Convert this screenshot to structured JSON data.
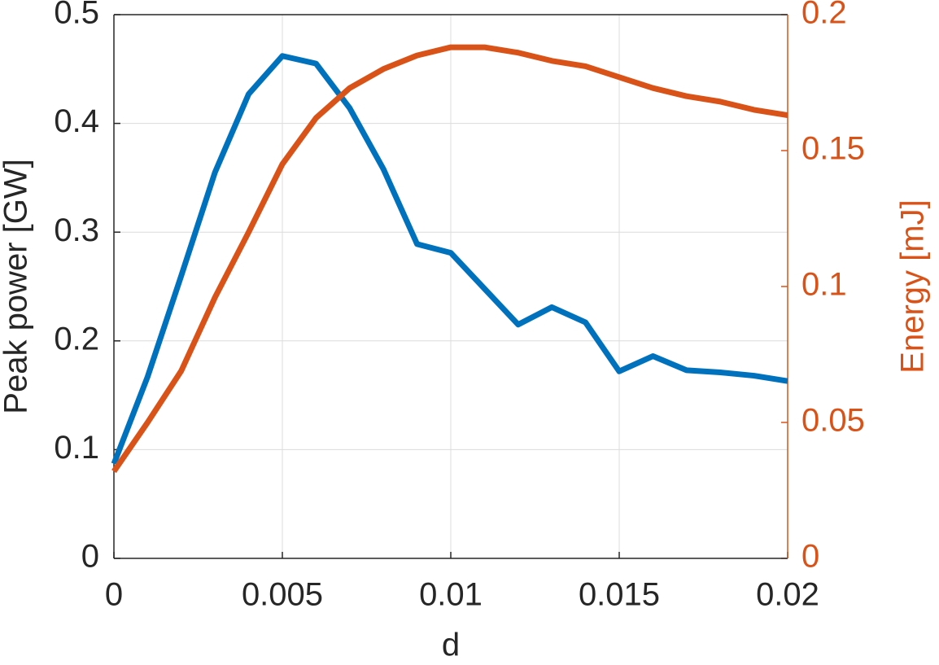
{
  "chart_data": {
    "type": "line",
    "xlabel": "d",
    "ylabel": "Peak power [GW]",
    "y2label": "Energy [mJ]",
    "x": [
      0,
      0.001,
      0.002,
      0.003,
      0.004,
      0.005,
      0.006,
      0.007,
      0.008,
      0.009,
      0.01,
      0.011,
      0.012,
      0.013,
      0.014,
      0.015,
      0.016,
      0.017,
      0.018,
      0.019,
      0.02
    ],
    "series": [
      {
        "name": "Peak power",
        "color": "#0072BD",
        "axis": "y",
        "values": [
          0.087,
          0.167,
          0.26,
          0.355,
          0.427,
          0.462,
          0.455,
          0.414,
          0.358,
          0.289,
          0.281,
          0.248,
          0.215,
          0.231,
          0.217,
          0.172,
          0.186,
          0.173,
          0.171,
          0.168,
          0.163
        ]
      },
      {
        "name": "Energy",
        "color": "#D95319",
        "axis": "y2",
        "values": [
          0.032,
          0.05,
          0.069,
          0.096,
          0.12,
          0.145,
          0.162,
          0.173,
          0.18,
          0.185,
          0.188,
          0.188,
          0.186,
          0.183,
          0.181,
          0.177,
          0.173,
          0.17,
          0.168,
          0.165,
          0.163
        ]
      }
    ],
    "xlim": [
      0,
      0.02
    ],
    "xticks": [
      0,
      0.005,
      0.01,
      0.015,
      0.02
    ],
    "ylim": [
      0,
      0.5
    ],
    "yticks": [
      0,
      0.1,
      0.2,
      0.3,
      0.4,
      0.5
    ],
    "y2lim": [
      0,
      0.2
    ],
    "y2ticks": [
      0,
      0.05,
      0.1,
      0.15,
      0.2
    ],
    "grid": true
  }
}
